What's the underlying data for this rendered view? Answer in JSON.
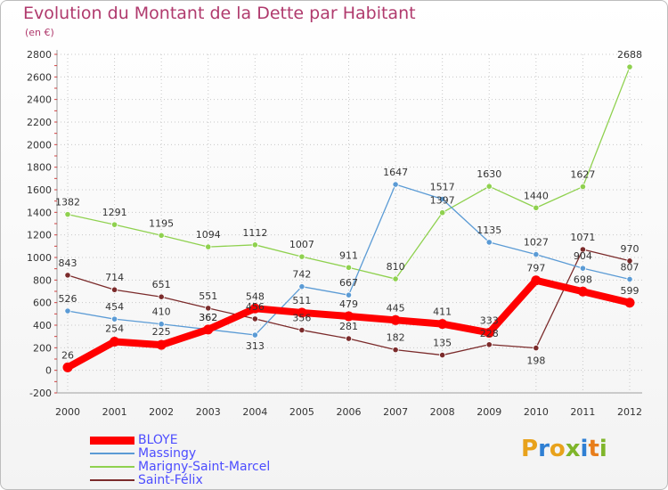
{
  "header": {
    "title": "Evolution du Montant de la Dette par Habitant",
    "unit": "(en €)"
  },
  "chart_data": {
    "type": "line",
    "title": "Evolution du Montant de la Dette par Habitant",
    "ylabel": "(en €)",
    "xlabel": "",
    "x": [
      "2000",
      "2001",
      "2002",
      "2003",
      "2004",
      "2005",
      "2006",
      "2007",
      "2008",
      "2009",
      "2010",
      "2011",
      "2012"
    ],
    "ylim": [
      -200,
      2800
    ],
    "yticks": [
      -200,
      0,
      200,
      400,
      600,
      800,
      1000,
      1200,
      1400,
      1600,
      1800,
      2000,
      2200,
      2400,
      2600,
      2800
    ],
    "grid": true,
    "legend_position": "bottom-left",
    "series": [
      {
        "name": "BLOYE",
        "color": "#ff0000",
        "values": [
          26,
          254,
          225,
          362,
          548,
          511,
          479,
          445,
          411,
          333,
          797,
          698,
          599
        ]
      },
      {
        "name": "Massingy",
        "color": "#5b9bd5",
        "values": [
          526,
          454,
          410,
          362,
          313,
          742,
          667,
          1647,
          1517,
          1135,
          1027,
          904,
          807
        ]
      },
      {
        "name": "Marigny-Saint-Marcel",
        "color": "#8fd14f",
        "values": [
          1382,
          1291,
          1195,
          1094,
          1112,
          1007,
          911,
          810,
          1397,
          1630,
          1440,
          1627,
          2688
        ]
      },
      {
        "name": "Saint-Félix",
        "color": "#7b2b2b",
        "values": [
          843,
          714,
          651,
          551,
          456,
          356,
          281,
          182,
          135,
          228,
          198,
          1071,
          970
        ]
      }
    ]
  },
  "logo": {
    "letters": [
      "P",
      "r",
      "o",
      "x",
      "i",
      "t",
      "i"
    ],
    "colors": [
      "#e8a21b",
      "#2f7fd3",
      "#e8a21b",
      "#7fb52a",
      "#2f7fd3",
      "#e87e1b",
      "#7fb52a"
    ]
  }
}
